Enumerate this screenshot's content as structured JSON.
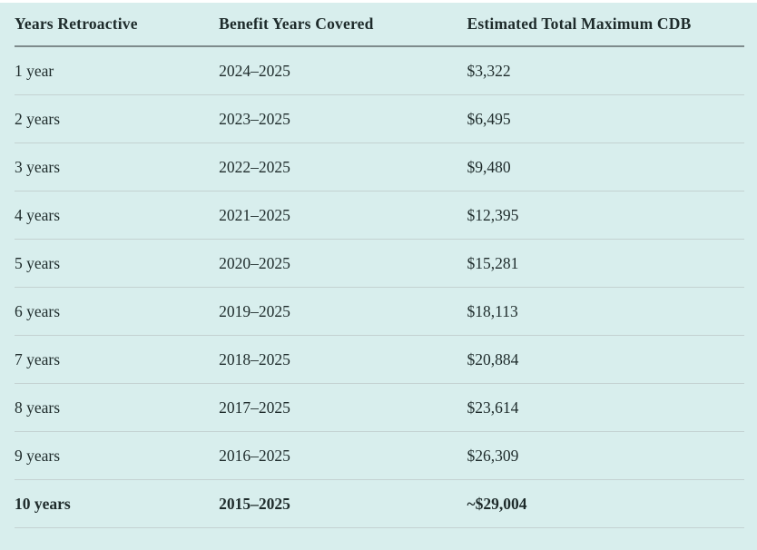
{
  "colors": {
    "page_background": "#ffffff",
    "table_background": "#d8eeed",
    "text": "#1e2b2b",
    "header_rule": "#7e8b8c",
    "row_rule": "#c4d2d2"
  },
  "chart_data": {
    "type": "table",
    "columns": [
      "Years Retroactive",
      "Benefit Years Covered",
      "Estimated Total Maximum CDB"
    ],
    "rows": [
      {
        "years_retroactive": "1 year",
        "benefit_years_covered": "2024–2025",
        "estimated_total_maximum_cdb": "$3,322",
        "emphasis": false
      },
      {
        "years_retroactive": "2 years",
        "benefit_years_covered": "2023–2025",
        "estimated_total_maximum_cdb": "$6,495",
        "emphasis": false
      },
      {
        "years_retroactive": "3 years",
        "benefit_years_covered": "2022–2025",
        "estimated_total_maximum_cdb": "$9,480",
        "emphasis": false
      },
      {
        "years_retroactive": "4 years",
        "benefit_years_covered": "2021–2025",
        "estimated_total_maximum_cdb": "$12,395",
        "emphasis": false
      },
      {
        "years_retroactive": "5 years",
        "benefit_years_covered": "2020–2025",
        "estimated_total_maximum_cdb": "$15,281",
        "emphasis": false
      },
      {
        "years_retroactive": "6 years",
        "benefit_years_covered": "2019–2025",
        "estimated_total_maximum_cdb": "$18,113",
        "emphasis": false
      },
      {
        "years_retroactive": "7 years",
        "benefit_years_covered": "2018–2025",
        "estimated_total_maximum_cdb": "$20,884",
        "emphasis": false
      },
      {
        "years_retroactive": "8 years",
        "benefit_years_covered": "2017–2025",
        "estimated_total_maximum_cdb": "$23,614",
        "emphasis": false
      },
      {
        "years_retroactive": "9 years",
        "benefit_years_covered": "2016–2025",
        "estimated_total_maximum_cdb": "$26,309",
        "emphasis": false
      },
      {
        "years_retroactive": "10 years",
        "benefit_years_covered": "2015–2025",
        "estimated_total_maximum_cdb": "~$29,004",
        "emphasis": true
      }
    ]
  }
}
